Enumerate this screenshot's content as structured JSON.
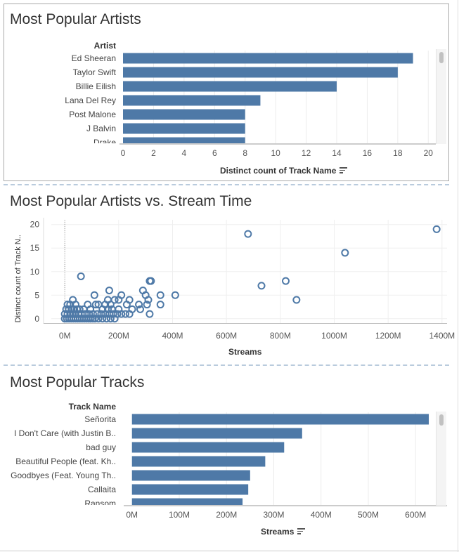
{
  "panels": [
    {
      "title": "Most Popular Artists"
    },
    {
      "title": "Most Popular Artists vs. Stream Time"
    },
    {
      "title": "Most Popular Tracks"
    }
  ],
  "chart_data": [
    {
      "type": "bar",
      "orientation": "horizontal",
      "title": "Most Popular Artists",
      "category_header": "Artist",
      "xlabel": "Distinct count of Track Name",
      "xlim": [
        0,
        21
      ],
      "xticks": [
        0,
        2,
        4,
        6,
        8,
        10,
        12,
        14,
        16,
        18,
        20
      ],
      "xtick_labels": [
        "0",
        "2",
        "4",
        "6",
        "8",
        "10",
        "12",
        "14",
        "16",
        "18",
        "20"
      ],
      "categories": [
        "Ed Sheeran",
        "Taylor Swift",
        "Billie Eilish",
        "Lana Del Rey",
        "Post Malone",
        "J Balvin",
        "Drake"
      ],
      "values": [
        19,
        18,
        14,
        9,
        8,
        8,
        8
      ],
      "color": "#4e79a7"
    },
    {
      "type": "scatter",
      "title": "Most Popular Artists vs. Stream Time",
      "xlabel": "Streams",
      "ylabel": "Distinct count of Track N..",
      "xlim": [
        -50,
        1450
      ],
      "ylim": [
        -1,
        21
      ],
      "xticks": [
        0,
        200,
        400,
        600,
        800,
        1000,
        1200,
        1400
      ],
      "xtick_labels": [
        "0M",
        "200M",
        "400M",
        "600M",
        "800M",
        "1000M",
        "1200M",
        "1400M"
      ],
      "yticks": [
        0,
        5,
        10,
        15,
        20
      ],
      "ytick_labels": [
        "0",
        "5",
        "10",
        "15",
        "20"
      ],
      "x_units": "M",
      "points": [
        [
          1380,
          19
        ],
        [
          680,
          18
        ],
        [
          1040,
          14
        ],
        [
          820,
          8
        ],
        [
          730,
          7
        ],
        [
          860,
          4
        ],
        [
          60,
          9
        ],
        [
          410,
          5
        ],
        [
          320,
          8
        ],
        [
          315,
          8
        ],
        [
          290,
          6
        ],
        [
          165,
          6
        ],
        [
          300,
          5
        ],
        [
          355,
          5
        ],
        [
          210,
          5
        ],
        [
          110,
          5
        ],
        [
          310,
          4
        ],
        [
          30,
          4
        ],
        [
          160,
          4
        ],
        [
          185,
          4
        ],
        [
          240,
          4
        ],
        [
          200,
          4
        ],
        [
          10,
          3
        ],
        [
          20,
          3
        ],
        [
          40,
          3
        ],
        [
          85,
          3
        ],
        [
          115,
          3
        ],
        [
          125,
          3
        ],
        [
          150,
          3
        ],
        [
          170,
          3
        ],
        [
          230,
          3
        ],
        [
          275,
          3
        ],
        [
          305,
          3
        ],
        [
          355,
          3
        ],
        [
          5,
          2
        ],
        [
          15,
          2
        ],
        [
          25,
          2
        ],
        [
          35,
          2
        ],
        [
          45,
          2
        ],
        [
          55,
          2
        ],
        [
          70,
          2
        ],
        [
          95,
          2
        ],
        [
          140,
          2
        ],
        [
          160,
          2
        ],
        [
          175,
          2
        ],
        [
          200,
          2
        ],
        [
          250,
          2
        ],
        [
          280,
          2
        ],
        [
          0,
          1
        ],
        [
          10,
          1
        ],
        [
          20,
          1
        ],
        [
          30,
          1
        ],
        [
          40,
          1
        ],
        [
          50,
          1
        ],
        [
          60,
          1
        ],
        [
          75,
          1
        ],
        [
          90,
          1
        ],
        [
          105,
          1
        ],
        [
          120,
          1
        ],
        [
          135,
          1
        ],
        [
          150,
          1
        ],
        [
          165,
          1
        ],
        [
          180,
          1
        ],
        [
          195,
          1
        ],
        [
          210,
          1
        ],
        [
          225,
          1
        ],
        [
          240,
          1
        ],
        [
          315,
          1
        ],
        [
          0,
          0
        ],
        [
          8,
          0
        ],
        [
          16,
          0
        ],
        [
          24,
          0
        ],
        [
          32,
          0
        ],
        [
          40,
          0
        ],
        [
          48,
          0
        ],
        [
          56,
          0
        ],
        [
          64,
          0
        ],
        [
          72,
          0
        ],
        [
          80,
          0
        ],
        [
          88,
          0
        ],
        [
          96,
          0
        ],
        [
          104,
          0
        ],
        [
          112,
          0
        ],
        [
          125,
          0
        ],
        [
          140,
          0
        ],
        [
          155,
          0
        ],
        [
          170,
          0
        ],
        [
          185,
          0
        ]
      ],
      "reference_line_x": 0,
      "color": "#4e79a7"
    },
    {
      "type": "bar",
      "orientation": "horizontal",
      "title": "Most Popular Tracks",
      "category_header": "Track Name",
      "xlabel": "Streams",
      "xlim": [
        -10,
        680
      ],
      "xticks": [
        0,
        100,
        200,
        300,
        400,
        500,
        600
      ],
      "xtick_labels": [
        "0M",
        "100M",
        "200M",
        "300M",
        "400M",
        "500M",
        "600M"
      ],
      "x_units": "M",
      "categories": [
        "Señorita",
        "I Don't Care (with Justin B..",
        "bad guy",
        "Beautiful People (feat. Kh..",
        "Goodbyes (Feat. Young Th..",
        "Callaita",
        "Ransom"
      ],
      "values": [
        628,
        360,
        322,
        282,
        250,
        246,
        234
      ],
      "color": "#4e79a7"
    }
  ]
}
